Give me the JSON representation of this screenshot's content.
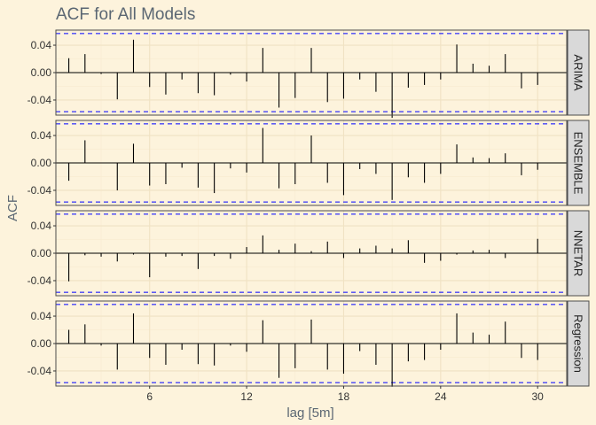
{
  "colors": {
    "background": "#fdf3dc",
    "panel_background": "#fdf3dc",
    "panel_border": "#4d4d4d",
    "major_grid": "#f0e2c3",
    "minor_grid": "#f7ebd0",
    "bar": "#000000",
    "significance_line": "#0000ff",
    "strip_fill": "#d9d9d9",
    "strip_border": "#4d4d4d",
    "title_text": "#5b6773"
  },
  "chart_data": {
    "type": "bar",
    "title": "ACF for All Models",
    "xlabel": "lag [5m]",
    "ylabel": "ACF",
    "x_ticks": [
      6,
      12,
      18,
      24,
      30
    ],
    "y_ticks": [
      -0.04,
      0.0,
      0.04
    ],
    "y_tick_labels": [
      "-0.04",
      "0.00",
      "0.04"
    ],
    "xlim": [
      0.2,
      31.8
    ],
    "ylim": [
      -0.062,
      0.062
    ],
    "significance_bound": 0.057,
    "significance_line_style": "dashed",
    "lags": [
      1,
      2,
      3,
      4,
      5,
      6,
      7,
      8,
      9,
      10,
      11,
      12,
      13,
      14,
      15,
      16,
      17,
      18,
      19,
      20,
      21,
      22,
      23,
      24,
      25,
      26,
      27,
      28,
      29,
      30
    ],
    "facets": [
      {
        "name": "ARIMA",
        "values": [
          0.021,
          0.027,
          -0.002,
          -0.039,
          0.048,
          -0.021,
          -0.032,
          -0.01,
          -0.03,
          -0.033,
          -0.003,
          -0.013,
          0.036,
          -0.051,
          -0.037,
          0.036,
          -0.043,
          -0.038,
          -0.01,
          -0.028,
          -0.066,
          -0.022,
          -0.018,
          -0.01,
          0.041,
          0.013,
          0.01,
          0.027,
          -0.023,
          -0.018
        ]
      },
      {
        "name": "ENSEMBLE",
        "values": [
          -0.026,
          0.033,
          0.0,
          -0.04,
          0.028,
          -0.033,
          -0.031,
          -0.007,
          -0.036,
          -0.044,
          -0.008,
          -0.014,
          0.051,
          -0.037,
          -0.031,
          0.04,
          -0.029,
          -0.047,
          -0.009,
          -0.016,
          -0.054,
          -0.021,
          -0.029,
          -0.016,
          0.027,
          0.008,
          0.007,
          0.014,
          -0.018,
          -0.01
        ]
      },
      {
        "name": "NNETAR",
        "values": [
          -0.041,
          -0.003,
          -0.005,
          -0.012,
          -0.002,
          -0.035,
          -0.005,
          -0.004,
          -0.023,
          -0.004,
          -0.008,
          0.009,
          0.026,
          0.005,
          0.014,
          0.003,
          0.017,
          -0.007,
          0.007,
          0.011,
          0.007,
          0.019,
          -0.014,
          -0.011,
          -0.002,
          0.004,
          0.005,
          -0.007,
          0.0,
          0.021
        ]
      },
      {
        "name": "Regression",
        "values": [
          0.02,
          0.028,
          -0.003,
          -0.038,
          0.044,
          -0.021,
          -0.031,
          -0.009,
          -0.03,
          -0.032,
          -0.003,
          -0.012,
          0.034,
          -0.05,
          -0.036,
          0.035,
          -0.038,
          -0.044,
          -0.011,
          -0.031,
          -0.063,
          -0.026,
          -0.024,
          -0.009,
          0.044,
          0.016,
          0.013,
          0.032,
          -0.021,
          -0.024
        ]
      }
    ]
  }
}
